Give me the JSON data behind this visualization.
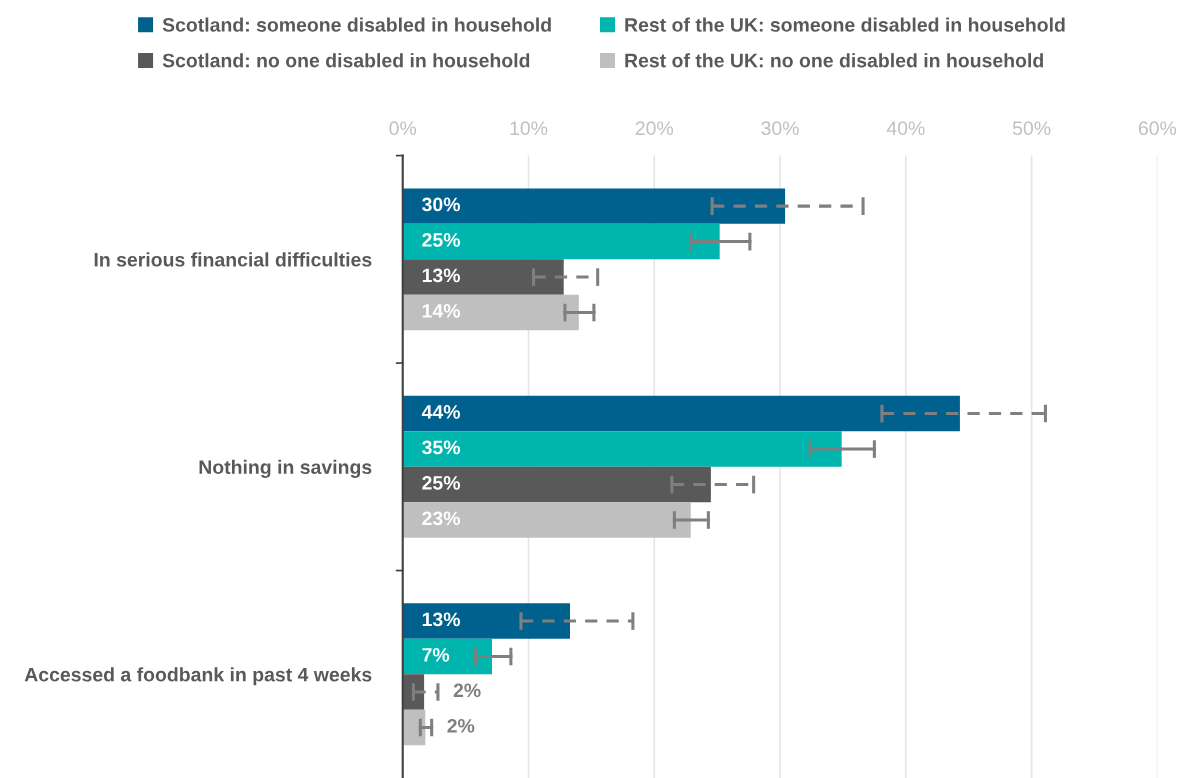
{
  "chart_data": {
    "type": "bar",
    "orientation": "horizontal",
    "categories": [
      "In serious financial difficulties",
      "Nothing in savings",
      "Accessed a foodbank in past 4 weeks"
    ],
    "xlim": [
      0,
      60
    ],
    "xticks": [
      {
        "value": 0,
        "label": "0%"
      },
      {
        "value": 10,
        "label": "10%"
      },
      {
        "value": 20,
        "label": "20%"
      },
      {
        "value": 30,
        "label": "30%"
      },
      {
        "value": 40,
        "label": "40%"
      },
      {
        "value": 50,
        "label": "50%"
      },
      {
        "value": 60,
        "label": "60%"
      }
    ],
    "grid": "x",
    "legend": "top",
    "series": [
      {
        "name": "Scotland: someone disabled in household",
        "color": "#00618f",
        "values": [
          30.4,
          44.3,
          13.3
        ],
        "value_labels": [
          "30%",
          "44%",
          "13%"
        ],
        "errors": [
          [
            24.6,
            36.6
          ],
          [
            38.1,
            51.1
          ],
          [
            9.4,
            18.3
          ]
        ],
        "line_style": "dashed"
      },
      {
        "name": "Rest of the UK: someone disabled in household",
        "color": "#00b5ad",
        "values": [
          25.2,
          34.9,
          7.1
        ],
        "value_labels": [
          "25%",
          "35%",
          "7%"
        ],
        "errors": [
          [
            22.9,
            27.6
          ],
          [
            32.4,
            37.5
          ],
          [
            5.8,
            8.6
          ]
        ],
        "line_style": "solid"
      },
      {
        "name": "Scotland: no one disabled in household",
        "color": "#595959",
        "values": [
          12.8,
          24.5,
          1.7
        ],
        "value_labels": [
          "13%",
          "25%",
          "2%"
        ],
        "errors": [
          [
            10.4,
            15.5
          ],
          [
            21.4,
            27.9
          ],
          [
            0.85,
            2.8
          ]
        ],
        "line_style": "dashed"
      },
      {
        "name": "Rest of the UK: no one disabled in household",
        "color": "#bfbfbf",
        "values": [
          14.0,
          22.9,
          1.8
        ],
        "value_labels": [
          "14%",
          "23%",
          "2%"
        ],
        "errors": [
          [
            12.9,
            15.2
          ],
          [
            21.6,
            24.3
          ],
          [
            1.4,
            2.3
          ]
        ],
        "line_style": "solid"
      }
    ]
  }
}
